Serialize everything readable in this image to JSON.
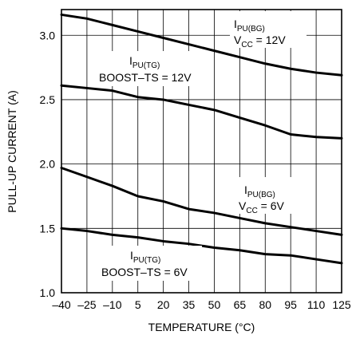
{
  "chart_data": {
    "type": "line",
    "xlabel": "TEMPERATURE (°C)",
    "ylabel": "PULL-UP CURRENT (A)",
    "xlim": [
      -40,
      125
    ],
    "ylim": [
      1.0,
      3.2
    ],
    "x_ticks": [
      -40,
      -25,
      -10,
      5,
      20,
      35,
      50,
      65,
      80,
      95,
      110,
      125
    ],
    "x_tick_labels": [
      "–40",
      "–25",
      "–10",
      "5",
      "20",
      "35",
      "50",
      "65",
      "80",
      "95",
      "110",
      "125"
    ],
    "y_ticks": [
      1.0,
      1.5,
      2.0,
      2.5,
      3.0
    ],
    "y_tick_labels": [
      "1.0",
      "1.5",
      "2.0",
      "2.5",
      "3.0"
    ],
    "grid": true,
    "series": [
      {
        "x": [
          -40,
          -25,
          -10,
          5,
          20,
          35,
          50,
          65,
          80,
          95,
          110,
          125
        ],
        "y": [
          3.16,
          3.13,
          3.08,
          3.03,
          2.98,
          2.93,
          2.88,
          2.83,
          2.78,
          2.74,
          2.71,
          2.69
        ]
      },
      {
        "x": [
          -40,
          -25,
          -10,
          5,
          20,
          35,
          50,
          65,
          80,
          95,
          110,
          125
        ],
        "y": [
          2.61,
          2.59,
          2.57,
          2.52,
          2.5,
          2.46,
          2.42,
          2.36,
          2.3,
          2.23,
          2.21,
          2.2
        ]
      },
      {
        "x": [
          -40,
          -25,
          -10,
          5,
          20,
          35,
          50,
          65,
          80,
          95,
          110,
          125
        ],
        "y": [
          1.97,
          1.9,
          1.83,
          1.75,
          1.71,
          1.65,
          1.62,
          1.58,
          1.54,
          1.51,
          1.48,
          1.45
        ]
      },
      {
        "x": [
          -40,
          -25,
          -10,
          5,
          20,
          35,
          50,
          65,
          80,
          95,
          110,
          125
        ],
        "y": [
          1.5,
          1.48,
          1.45,
          1.43,
          1.4,
          1.38,
          1.35,
          1.33,
          1.3,
          1.29,
          1.26,
          1.23
        ]
      }
    ],
    "annotations": [
      {
        "main": "I",
        "sub": "PU(BG)",
        "line2_main": "V",
        "line2_sub": "CC",
        "line2_rest": " = 12V"
      },
      {
        "main": "I",
        "sub": "PU(TG)",
        "line2": "BOOST–TS = 12V"
      },
      {
        "main": "I",
        "sub": "PU(BG)",
        "line2_main": "V",
        "line2_sub": "CC",
        "line2_rest": " = 6V"
      },
      {
        "main": "I",
        "sub": "PU(TG)",
        "line2": "BOOST–TS = 6V"
      }
    ]
  }
}
